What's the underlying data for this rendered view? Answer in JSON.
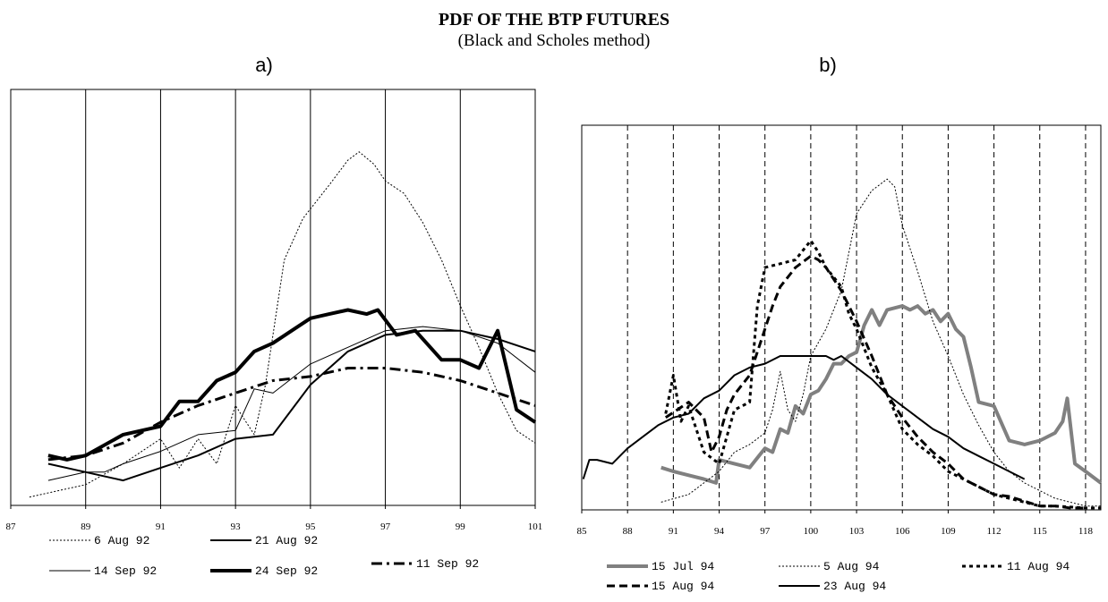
{
  "title": "PDF OF THE BTP FUTURES",
  "subtitle": "(Black and Scholes method)",
  "chart_data": [
    {
      "type": "line",
      "label": "a)",
      "xlim": [
        87,
        101
      ],
      "ylim": [
        0,
        100
      ],
      "xticks": [
        87,
        89,
        91,
        93,
        95,
        97,
        99,
        101
      ],
      "grid": true,
      "grid_style": "solid",
      "series": [
        {
          "name": "6 Aug 92",
          "color": "#000000",
          "style": "dotted",
          "width": 1,
          "x": [
            87.5,
            89,
            90,
            91,
            91.5,
            92,
            92.5,
            93,
            93.5,
            93.8,
            94.3,
            94.8,
            95.5,
            96,
            96.3,
            96.7,
            97,
            97.5,
            98,
            98.5,
            99,
            99.5,
            100,
            100.5,
            101
          ],
          "values": [
            2,
            5,
            10,
            16,
            9,
            16,
            10,
            24,
            17,
            29,
            59,
            69,
            77,
            83,
            85,
            82,
            78,
            75,
            68,
            59,
            48,
            38,
            27,
            18,
            15
          ]
        },
        {
          "name": "21 Aug 92",
          "color": "#000000",
          "style": "solid",
          "width": 2,
          "x": [
            88,
            89,
            90,
            91,
            92,
            93,
            94,
            95,
            96,
            97,
            98,
            99,
            100,
            101
          ],
          "values": [
            10,
            8,
            6,
            9,
            12,
            16,
            17,
            29,
            37,
            41,
            42,
            42,
            40,
            37
          ]
        },
        {
          "name": "14 Sep 92",
          "color": "#000000",
          "style": "solid",
          "width": 1,
          "x": [
            88,
            89,
            89.5,
            90,
            91,
            92,
            93,
            93.5,
            94,
            95,
            96,
            97,
            98,
            99,
            100,
            101
          ],
          "values": [
            6,
            8,
            8,
            10,
            13,
            17,
            18,
            28,
            27,
            34,
            38,
            42,
            43,
            42,
            39,
            32
          ]
        },
        {
          "name": "24 Sep 92",
          "color": "#000000",
          "style": "solid",
          "width": 4,
          "x": [
            88,
            88.5,
            89,
            90,
            91,
            91.5,
            92,
            92.5,
            93,
            93.5,
            94,
            94.5,
            95,
            95.5,
            96,
            96.5,
            96.8,
            97.3,
            97.8,
            98.5,
            99,
            99.5,
            100,
            100.5,
            101
          ],
          "values": [
            12,
            11,
            12,
            17,
            19,
            25,
            25,
            30,
            32,
            37,
            39,
            42,
            45,
            46,
            47,
            46,
            47,
            41,
            42,
            35,
            35,
            33,
            42,
            23,
            20
          ]
        },
        {
          "name": "11 Sep 92",
          "color": "#000000",
          "style": "dashdot",
          "width": 3,
          "x": [
            88,
            89,
            90,
            91,
            92,
            93,
            94,
            95,
            96,
            97,
            98,
            99,
            100,
            101
          ],
          "values": [
            11,
            12,
            15,
            20,
            24,
            27,
            30,
            31,
            33,
            33,
            32,
            30,
            27,
            24
          ]
        }
      ]
    },
    {
      "type": "line",
      "label": "b)",
      "xlim": [
        85,
        119
      ],
      "ylim": [
        0,
        100
      ],
      "xticks": [
        85,
        88,
        91,
        94,
        97,
        100,
        103,
        106,
        109,
        112,
        115,
        118
      ],
      "grid": true,
      "grid_style": "dashed",
      "series": [
        {
          "name": "15 Jul 94",
          "color": "#808080",
          "style": "solid",
          "width": 4,
          "x": [
            90.2,
            91,
            92,
            93,
            93.8,
            94,
            95,
            96,
            97,
            97.5,
            98,
            98.5,
            99,
            99.5,
            100,
            100.5,
            101,
            101.5,
            102,
            102.5,
            103,
            103.5,
            104,
            104.5,
            105,
            106,
            106.5,
            107,
            107.5,
            108,
            108.5,
            109,
            109.5,
            110,
            110.5,
            111,
            112,
            113,
            114,
            115,
            116,
            116.5,
            116.8,
            117.3,
            118,
            119
          ],
          "values": [
            11,
            10,
            9,
            8,
            7,
            13,
            12,
            11,
            16,
            15,
            21,
            20,
            27,
            25,
            30,
            31,
            34,
            38,
            38,
            40,
            41,
            48,
            52,
            48,
            52,
            53,
            52,
            53,
            51,
            52,
            49,
            51,
            47,
            45,
            37,
            28,
            27,
            18,
            17,
            18,
            20,
            23,
            29,
            12,
            10,
            7
          ]
        },
        {
          "name": "5 Aug 94",
          "color": "#000000",
          "style": "dotted",
          "width": 1,
          "x": [
            90.2,
            92,
            93,
            94,
            95,
            96,
            97,
            97.5,
            98,
            98.5,
            99,
            99.5,
            100,
            101,
            102,
            103,
            104,
            105,
            105.5,
            106,
            107,
            108,
            109,
            110,
            111,
            112,
            113,
            114,
            115,
            116,
            117,
            118,
            119
          ],
          "values": [
            2,
            4,
            7,
            10,
            15,
            17,
            20,
            26,
            36,
            26,
            23,
            30,
            40,
            47,
            57,
            77,
            83,
            86,
            84,
            74,
            62,
            49,
            40,
            30,
            22,
            15,
            10,
            7,
            5,
            3,
            2,
            1,
            1
          ]
        },
        {
          "name": "11 Aug 94",
          "color": "#000000",
          "style": "dotted-thick",
          "width": 3,
          "x": [
            90.5,
            91,
            91.5,
            92,
            93,
            94,
            95,
            96,
            96.5,
            97,
            98,
            99,
            100,
            100.5,
            101,
            102,
            102.5,
            103,
            104,
            105,
            106,
            107,
            108,
            109,
            110,
            111,
            112,
            113,
            114,
            115,
            116,
            118,
            119
          ],
          "values": [
            25,
            35,
            23,
            27,
            15,
            12,
            26,
            28,
            53,
            63,
            64,
            65,
            70,
            67,
            63,
            58,
            51,
            47,
            37,
            30,
            21,
            17,
            14,
            10,
            8,
            6,
            4,
            3,
            2,
            1,
            1,
            0.5,
            0.5
          ]
        },
        {
          "name": "15 Aug 94",
          "color": "#000000",
          "style": "dashed",
          "width": 3,
          "x": [
            90.5,
            92,
            93,
            93.5,
            94,
            94.5,
            95,
            96,
            97,
            97.5,
            98,
            99,
            100,
            100.5,
            101,
            102,
            103,
            104,
            105,
            106,
            107,
            108,
            109,
            110,
            111,
            112,
            113,
            115,
            116,
            117,
            118
          ],
          "values": [
            24,
            28,
            24,
            15,
            19,
            26,
            30,
            35,
            47,
            53,
            58,
            63,
            66,
            65,
            63,
            57,
            49,
            40,
            30,
            24,
            19,
            15,
            12,
            8,
            6,
            4,
            3.5,
            1,
            1,
            0.5,
            0.5
          ]
        },
        {
          "name": "23 Aug 94",
          "color": "#000000",
          "style": "solid",
          "width": 2,
          "x": [
            85.1,
            85.5,
            86,
            87,
            88,
            89,
            90,
            91,
            92,
            93,
            94,
            95,
            96,
            97,
            98,
            99,
            100,
            101,
            101.5,
            102,
            103,
            104,
            105,
            106,
            107,
            108,
            109,
            110,
            111,
            112,
            113,
            114
          ],
          "values": [
            8,
            13,
            13,
            12,
            16,
            19,
            22,
            24,
            25,
            29,
            31,
            35,
            37,
            38,
            40,
            40,
            40,
            40,
            39,
            40,
            37,
            34,
            30,
            27,
            24,
            21,
            19,
            16,
            14,
            12,
            10,
            8
          ]
        }
      ]
    }
  ]
}
